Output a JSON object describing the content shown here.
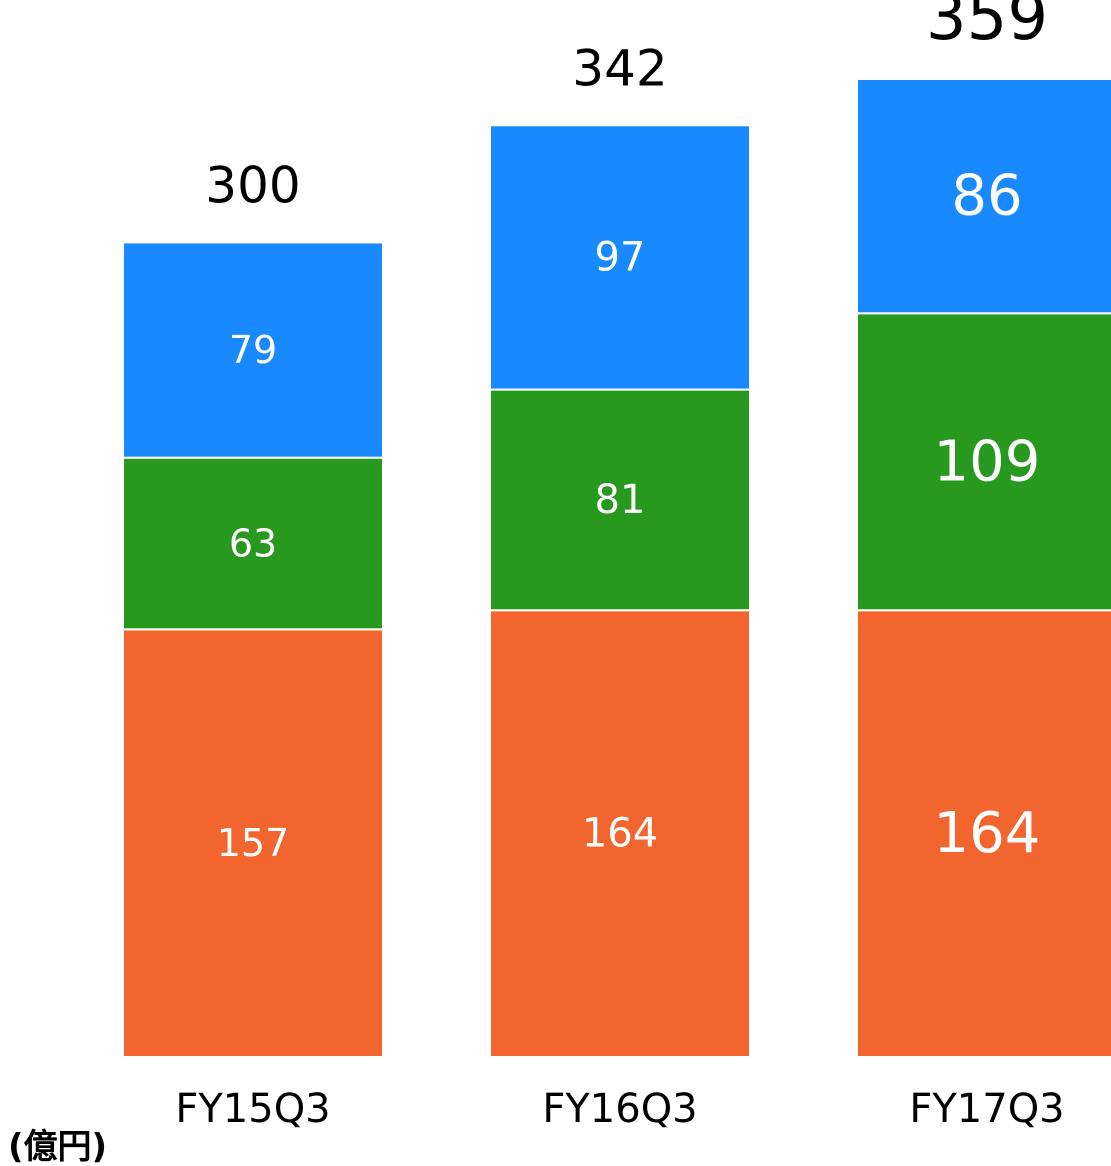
{
  "chart_data": {
    "type": "bar",
    "stacked": true,
    "categories": [
      "FY15Q3",
      "FY16Q3",
      "FY17Q3"
    ],
    "series": [
      {
        "values": [
          157,
          164,
          164
        ],
        "color": "#f2652e"
      },
      {
        "values": [
          63,
          81,
          109
        ],
        "color": "#28991f"
      },
      {
        "values": [
          79,
          97,
          86
        ],
        "color": "#1889ff"
      }
    ],
    "totals": [
      300,
      342,
      359
    ],
    "unit": "(億円)",
    "title": "",
    "xlabel": "",
    "ylabel": "",
    "ylim": [
      0,
      359
    ],
    "grid": false,
    "legend": "none"
  }
}
